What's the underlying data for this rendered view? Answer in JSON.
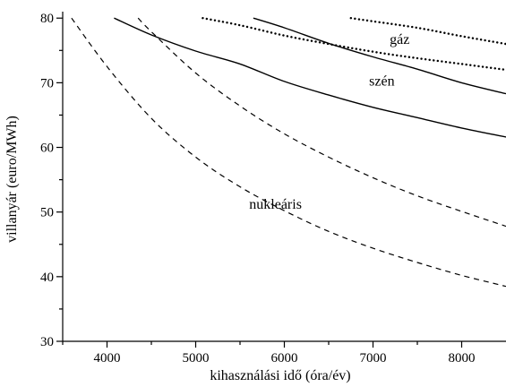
{
  "chart_data": {
    "type": "line",
    "title": "",
    "xlabel": "kihasználási idő (óra/év)",
    "ylabel": "villanyár (euro/MWh)",
    "xlim": [
      3500,
      8500
    ],
    "ylim": [
      30,
      81
    ],
    "x_ticks": [
      4000,
      5000,
      6000,
      7000,
      8000
    ],
    "x_minor_ticks": [
      3500,
      4500,
      5500,
      6500,
      7500
    ],
    "y_ticks": [
      30,
      40,
      50,
      60,
      70,
      80
    ],
    "y_minor_ticks": [
      35,
      45,
      55,
      65,
      75
    ],
    "legend": "none",
    "grid": false,
    "group_labels": [
      {
        "text": "gáz",
        "x": 7300,
        "y": 76
      },
      {
        "text": "szén",
        "x": 7100,
        "y": 69.6
      },
      {
        "text": "nukleáris",
        "x": 5900,
        "y": 50.5
      }
    ],
    "series": [
      {
        "group": "nukleáris",
        "style": "dashed",
        "x": [
          3600,
          4000,
          4500,
          5000,
          5500,
          6000,
          6500,
          7000,
          7500,
          8000,
          8500
        ],
        "y": [
          80,
          72.5,
          64.5,
          58.5,
          53.9,
          50.2,
          47.0,
          44.4,
          42.2,
          40.2,
          38.5
        ]
      },
      {
        "group": "nukleáris",
        "style": "dashed",
        "x": [
          4350,
          4500,
          5000,
          5500,
          6000,
          6500,
          7000,
          7500,
          8000,
          8500
        ],
        "y": [
          80,
          77.9,
          71.5,
          66.4,
          62.1,
          58.5,
          55.3,
          52.5,
          50.1,
          47.8
        ]
      },
      {
        "group": "szén",
        "style": "solid",
        "x": [
          4080,
          4500,
          5000,
          5500,
          6000,
          6500,
          7000,
          7500,
          8000,
          8500
        ],
        "y": [
          80,
          77.4,
          74.9,
          72.9,
          70.2,
          68.1,
          66.2,
          64.6,
          63.0,
          61.6
        ]
      },
      {
        "group": "szén",
        "style": "solid",
        "x": [
          5650,
          6000,
          6500,
          7000,
          7500,
          8000,
          8500
        ],
        "y": [
          80,
          78.5,
          76.1,
          74.0,
          72.1,
          70.0,
          68.3
        ]
      },
      {
        "group": "gáz",
        "style": "dotted",
        "x": [
          5080,
          5500,
          6000,
          6500,
          7000,
          7500,
          8000,
          8500
        ],
        "y": [
          80,
          78.9,
          77.3,
          76.0,
          74.8,
          73.8,
          72.9,
          72.0
        ]
      },
      {
        "group": "gáz",
        "style": "dotted",
        "x": [
          6750,
          7000,
          7500,
          8000,
          8500
        ],
        "y": [
          80,
          79.5,
          78.5,
          77.2,
          76.0
        ]
      }
    ]
  }
}
